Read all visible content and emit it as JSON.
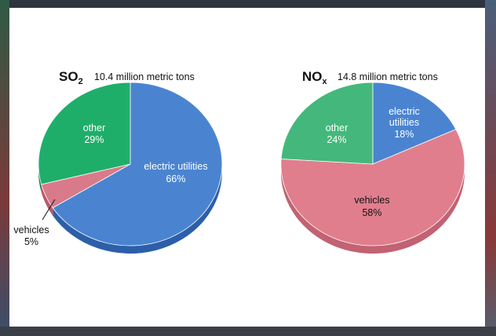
{
  "chart_data": [
    {
      "type": "pie",
      "title_main": "SO",
      "title_sub": "2",
      "subtitle": "10.4 million metric tons",
      "series": [
        {
          "name": "electric utilities",
          "value": 66,
          "label": "66%",
          "color": "#4a84d0",
          "side": "#2c5fa8"
        },
        {
          "name": "vehicles",
          "value": 5,
          "label": "5%",
          "color": "#d97a8a",
          "side": "#b85a6a"
        },
        {
          "name": "other",
          "value": 29,
          "label": "29%",
          "color": "#1fae6a",
          "side": "#14804c"
        }
      ]
    },
    {
      "type": "pie",
      "title_main": "NO",
      "title_sub": "x",
      "subtitle": "14.8 million metric tons",
      "series": [
        {
          "name": "electric utilities",
          "value": 18,
          "label": "18%",
          "color": "#4a84d0",
          "side": "#2c5fa8"
        },
        {
          "name": "vehicles",
          "value": 58,
          "label": "58%",
          "color": "#e07e8e",
          "side": "#c26272"
        },
        {
          "name": "other",
          "value": 24,
          "label": "24%",
          "color": "#44b87c",
          "side": "#2e9060"
        }
      ]
    }
  ]
}
